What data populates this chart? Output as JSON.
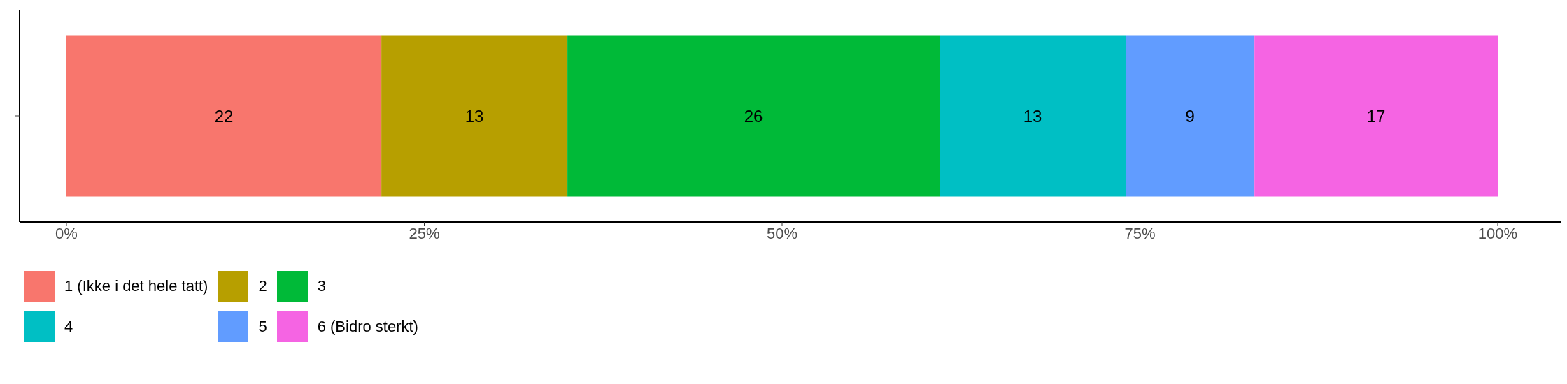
{
  "chart_data": {
    "type": "bar",
    "orientation": "horizontal",
    "stacked": true,
    "categories": [
      null
    ],
    "series": [
      {
        "name": "1 (Ikke i det hele tatt)",
        "color": "#f8766d",
        "values": [
          22
        ]
      },
      {
        "name": "2",
        "color": "#b79f00",
        "values": [
          13
        ]
      },
      {
        "name": "3",
        "color": "#00ba38",
        "values": [
          26
        ]
      },
      {
        "name": "4",
        "color": "#00bfc4",
        "values": [
          13
        ]
      },
      {
        "name": "5",
        "color": "#619cff",
        "values": [
          9
        ]
      },
      {
        "name": "6 (Bidro sterkt)",
        "color": "#f564e3",
        "values": [
          17
        ]
      }
    ],
    "xlim": [
      0,
      100
    ],
    "xticks": [
      {
        "value": 0,
        "label": "0%"
      },
      {
        "value": 25,
        "label": "25%"
      },
      {
        "value": 50,
        "label": "50%"
      },
      {
        "value": 75,
        "label": "75%"
      },
      {
        "value": 100,
        "label": "100%"
      }
    ],
    "data_labels": true,
    "grid": false,
    "legend": "bottom"
  }
}
